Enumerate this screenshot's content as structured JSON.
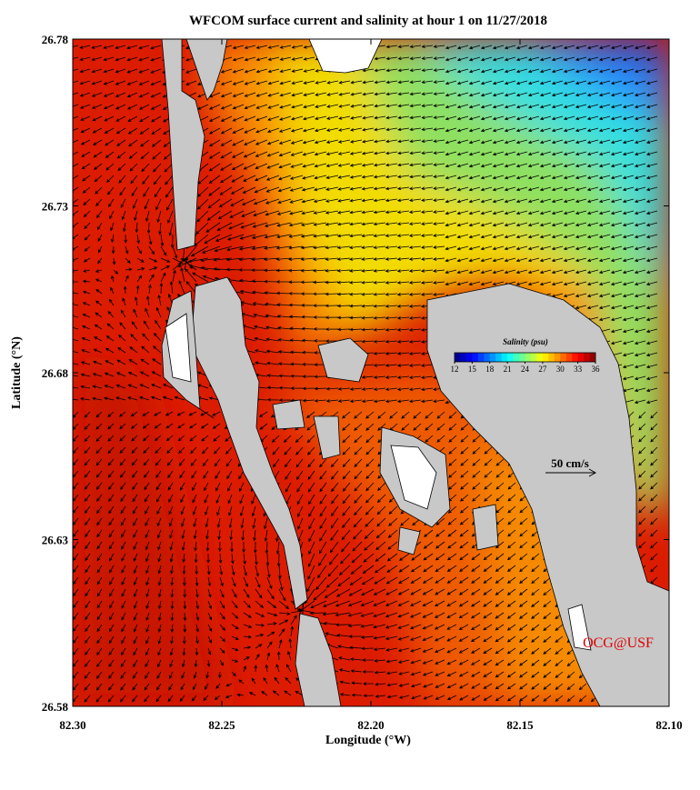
{
  "chart_data": {
    "type": "map",
    "title": "WFCOM surface current and salinity at hour 1 on 11/27/2018",
    "x_label": "Longitude (°W)",
    "y_label": "Latitude (°N)",
    "xlim": [
      82.3,
      82.1
    ],
    "ylim": [
      26.58,
      26.78
    ],
    "xticks": [
      {
        "value": 82.3,
        "label": "82.30"
      },
      {
        "value": 82.25,
        "label": "82.25"
      },
      {
        "value": 82.2,
        "label": "82.20"
      },
      {
        "value": 82.15,
        "label": "82.15"
      },
      {
        "value": 82.1,
        "label": "82.10"
      }
    ],
    "yticks": [
      26.58,
      26.63,
      26.68,
      26.73,
      26.78
    ],
    "colorbar": {
      "title": "Salinity (psu)",
      "clim": [
        12,
        36
      ],
      "ticks": [
        12,
        15,
        18,
        21,
        24,
        27,
        30,
        33,
        36
      ]
    },
    "scale_label": "50 cm/s",
    "credit": "OCG@USF"
  }
}
